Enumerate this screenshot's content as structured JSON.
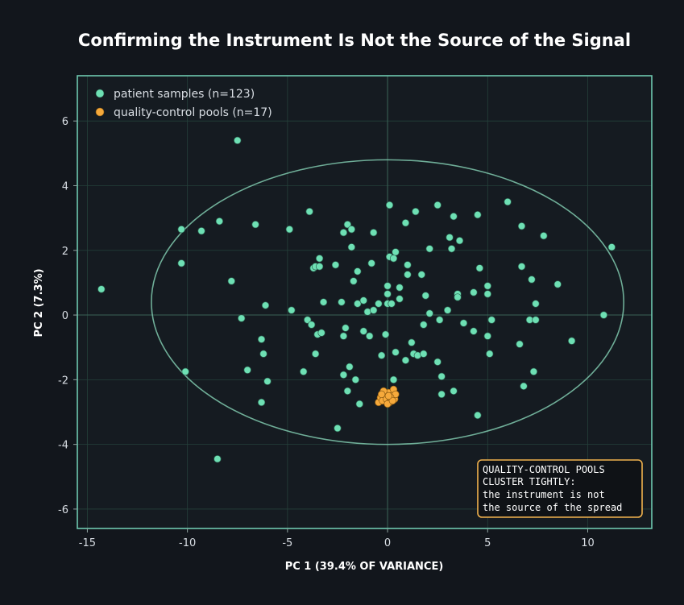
{
  "chart_data": {
    "type": "scatter",
    "title": "Confirming the Instrument Is Not the Source of the Signal",
    "xlabel": "PC 1 (39.4% OF VARIANCE)",
    "ylabel": "PC 2 (7.3%)",
    "xlim": [
      -15.5,
      13.2
    ],
    "ylim": [
      -6.6,
      7.4
    ],
    "xticks": [
      -15,
      -10,
      -5,
      0,
      5,
      10
    ],
    "yticks": [
      -6,
      -4,
      -2,
      0,
      2,
      4,
      6
    ],
    "grid": true,
    "legend_position": "top-left",
    "ellipse": {
      "center": [
        0,
        0.4
      ],
      "radii": [
        11.8,
        4.4
      ]
    },
    "series": [
      {
        "name": "patient samples (n=123)",
        "color": "#6ee0b4",
        "points": [
          [
            -14.3,
            0.8
          ],
          [
            -10.3,
            2.65
          ],
          [
            -10.3,
            1.6
          ],
          [
            -10.1,
            -1.75
          ],
          [
            -9.3,
            2.6
          ],
          [
            -8.4,
            2.9
          ],
          [
            -8.5,
            -4.45
          ],
          [
            -7.8,
            1.05
          ],
          [
            -7.5,
            5.4
          ],
          [
            -7.3,
            -0.1
          ],
          [
            -7.0,
            -1.7
          ],
          [
            -6.6,
            2.8
          ],
          [
            -6.3,
            -0.75
          ],
          [
            -6.3,
            -2.7
          ],
          [
            -6.2,
            -1.2
          ],
          [
            -6.1,
            0.3
          ],
          [
            -6.0,
            -2.05
          ],
          [
            -4.9,
            2.65
          ],
          [
            -4.8,
            0.15
          ],
          [
            -4.2,
            -1.75
          ],
          [
            -4.0,
            -0.15
          ],
          [
            -3.9,
            3.2
          ],
          [
            -3.8,
            -0.3
          ],
          [
            -3.7,
            1.45
          ],
          [
            -3.6,
            1.5
          ],
          [
            -3.6,
            -1.2
          ],
          [
            -3.5,
            -0.6
          ],
          [
            -3.4,
            1.75
          ],
          [
            -3.4,
            1.5
          ],
          [
            -3.3,
            -0.55
          ],
          [
            -3.2,
            0.4
          ],
          [
            -2.6,
            1.55
          ],
          [
            -2.5,
            -3.5
          ],
          [
            -2.3,
            0.4
          ],
          [
            -2.2,
            -0.65
          ],
          [
            -2.2,
            -1.85
          ],
          [
            -2.2,
            2.55
          ],
          [
            -2.1,
            -0.4
          ],
          [
            -2.0,
            2.8
          ],
          [
            -2.0,
            -2.35
          ],
          [
            -1.9,
            -1.6
          ],
          [
            -1.8,
            2.65
          ],
          [
            -1.8,
            2.1
          ],
          [
            -1.7,
            1.05
          ],
          [
            -1.6,
            -2.0
          ],
          [
            -1.5,
            1.35
          ],
          [
            -1.5,
            0.35
          ],
          [
            -1.4,
            -2.75
          ],
          [
            -1.2,
            0.45
          ],
          [
            -1.2,
            -0.5
          ],
          [
            -1.0,
            0.1
          ],
          [
            -0.9,
            -0.65
          ],
          [
            -0.8,
            1.6
          ],
          [
            -0.7,
            2.55
          ],
          [
            -0.7,
            0.15
          ],
          [
            -0.3,
            -1.25
          ],
          [
            -0.1,
            -0.6
          ],
          [
            0.0,
            0.35
          ],
          [
            0.0,
            0.65
          ],
          [
            0.0,
            0.9
          ],
          [
            0.1,
            3.4
          ],
          [
            0.1,
            1.8
          ],
          [
            0.2,
            0.35
          ],
          [
            0.3,
            -2.0
          ],
          [
            0.3,
            1.75
          ],
          [
            0.4,
            1.95
          ],
          [
            0.4,
            -1.15
          ],
          [
            0.6,
            0.5
          ],
          [
            0.6,
            0.85
          ],
          [
            0.9,
            2.85
          ],
          [
            0.9,
            -1.4
          ],
          [
            1.0,
            1.55
          ],
          [
            1.0,
            1.25
          ],
          [
            1.2,
            -0.85
          ],
          [
            1.3,
            -1.2
          ],
          [
            1.4,
            3.2
          ],
          [
            1.5,
            -1.25
          ],
          [
            1.7,
            1.25
          ],
          [
            1.8,
            -0.3
          ],
          [
            1.8,
            -1.2
          ],
          [
            2.1,
            2.05
          ],
          [
            2.1,
            0.05
          ],
          [
            2.5,
            3.4
          ],
          [
            2.5,
            -1.45
          ],
          [
            2.6,
            -0.15
          ],
          [
            2.7,
            -1.9
          ],
          [
            2.7,
            -2.45
          ],
          [
            3.0,
            0.15
          ],
          [
            3.1,
            2.4
          ],
          [
            3.2,
            2.05
          ],
          [
            3.3,
            3.05
          ],
          [
            3.3,
            -2.35
          ],
          [
            3.5,
            0.65
          ],
          [
            3.5,
            0.55
          ],
          [
            3.6,
            2.3
          ],
          [
            3.8,
            -0.25
          ],
          [
            4.3,
            0.7
          ],
          [
            4.3,
            -0.5
          ],
          [
            4.5,
            3.1
          ],
          [
            4.5,
            -3.1
          ],
          [
            4.6,
            1.45
          ],
          [
            5.0,
            0.9
          ],
          [
            5.0,
            0.65
          ],
          [
            5.0,
            -0.65
          ],
          [
            5.1,
            -1.2
          ],
          [
            5.2,
            -0.15
          ],
          [
            6.0,
            3.5
          ],
          [
            6.6,
            -0.9
          ],
          [
            6.7,
            2.75
          ],
          [
            6.7,
            1.5
          ],
          [
            6.8,
            -2.2
          ],
          [
            7.1,
            -0.15
          ],
          [
            7.2,
            1.1
          ],
          [
            7.3,
            -1.75
          ],
          [
            7.4,
            0.35
          ],
          [
            7.4,
            -0.15
          ],
          [
            7.8,
            2.45
          ],
          [
            8.5,
            0.95
          ],
          [
            9.2,
            -0.8
          ],
          [
            10.8,
            0.0
          ],
          [
            11.2,
            2.1
          ],
          [
            -0.45,
            0.35
          ],
          [
            1.9,
            0.6
          ]
        ]
      },
      {
        "name": "quality-control pools (n=17)",
        "color": "#f6a93b",
        "points": [
          [
            -0.45,
            -2.7
          ],
          [
            -0.35,
            -2.55
          ],
          [
            -0.25,
            -2.65
          ],
          [
            -0.15,
            -2.45
          ],
          [
            -0.05,
            -2.6
          ],
          [
            0.05,
            -2.4
          ],
          [
            0.1,
            -2.7
          ],
          [
            0.2,
            -2.5
          ],
          [
            0.3,
            -2.3
          ],
          [
            0.35,
            -2.6
          ],
          [
            0.4,
            -2.45
          ],
          [
            -0.2,
            -2.35
          ],
          [
            0.0,
            -2.75
          ],
          [
            0.15,
            -2.55
          ],
          [
            -0.3,
            -2.45
          ],
          [
            0.25,
            -2.65
          ],
          [
            0.05,
            -2.5
          ]
        ]
      }
    ],
    "annotation": {
      "lines": [
        "QUALITY-CONTROL POOLS",
        "CLUSTER TIGHTLY:",
        "the instrument is not",
        "the source of the spread"
      ]
    }
  }
}
